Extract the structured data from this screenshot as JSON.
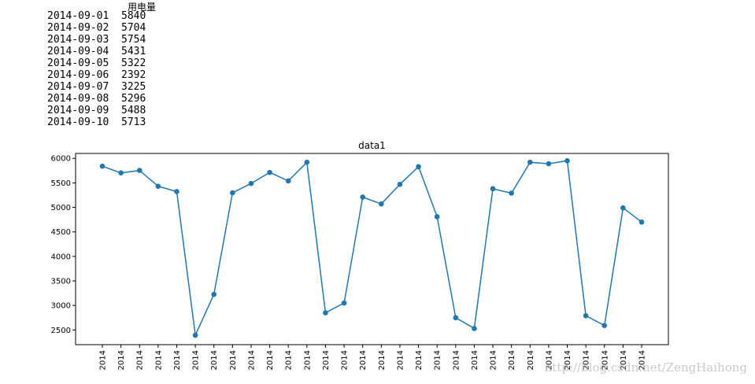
{
  "table": {
    "column_header": "用电量",
    "rows": [
      {
        "date": "2014-09-01",
        "value": "5840"
      },
      {
        "date": "2014-09-02",
        "value": "5704"
      },
      {
        "date": "2014-09-03",
        "value": "5754"
      },
      {
        "date": "2014-09-04",
        "value": "5431"
      },
      {
        "date": "2014-09-05",
        "value": "5322"
      },
      {
        "date": "2014-09-06",
        "value": "2392"
      },
      {
        "date": "2014-09-07",
        "value": "3225"
      },
      {
        "date": "2014-09-08",
        "value": "5296"
      },
      {
        "date": "2014-09-09",
        "value": "5488"
      },
      {
        "date": "2014-09-10",
        "value": "5713"
      }
    ]
  },
  "watermark": "http://blog.csdn.net/ZengHaihong",
  "chart_data": {
    "type": "line",
    "title": "data1",
    "xlabel": "",
    "ylabel": "",
    "x_tick_label": "2014",
    "ylim": [
      2200,
      6100
    ],
    "yticks": [
      2500,
      3000,
      3500,
      4000,
      4500,
      5000,
      5500,
      6000
    ],
    "grid": false,
    "marker": "circle",
    "color": "#1f77b4",
    "series": [
      {
        "values": [
          5840,
          5704,
          5754,
          5431,
          5322,
          2392,
          3225,
          5296,
          5488,
          5713,
          5540,
          5920,
          2850,
          3050,
          5210,
          5070,
          5470,
          5830,
          4810,
          2750,
          2530,
          5380,
          5290,
          5920,
          5890,
          5950,
          2790,
          2590,
          4990,
          4700
        ]
      }
    ]
  }
}
